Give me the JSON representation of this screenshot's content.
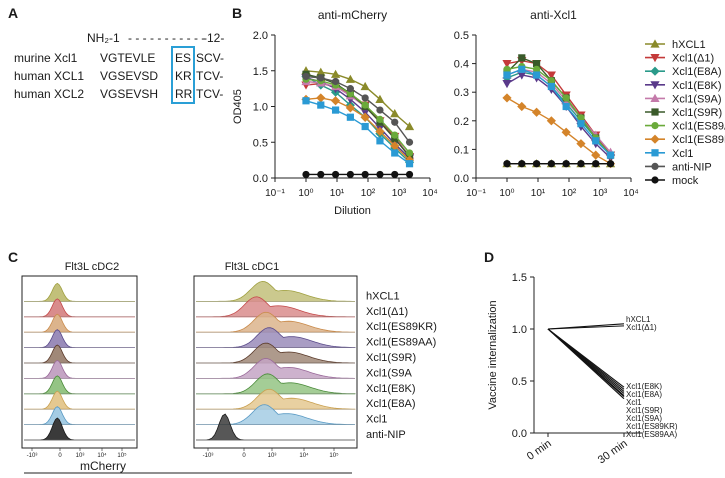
{
  "panels": {
    "A": {
      "letter": "A",
      "header_left": "NH₂-1",
      "header_dashes": "- - - - - - - - - - -",
      "header_right": "-12-",
      "rows": [
        {
          "label": "murine Xcl1",
          "pre": "VGTEVLE",
          "box": "ES",
          "post": "SCV-"
        },
        {
          "label": "human XCL1",
          "pre": "VGSEVSD",
          "box": "KR",
          "post": "TCV-"
        },
        {
          "label": "human XCL2",
          "pre": "VGSEVSH",
          "box": "RR",
          "post": "TCV-"
        }
      ],
      "box_color": "#2a9fd6"
    },
    "B": {
      "letter": "B"
    },
    "C": {
      "letter": "C",
      "title_left": "Flt3L cDC2",
      "title_right": "Flt3L cDC1",
      "xaxis_label": "mCherry",
      "tick_labels": [
        "-10³",
        "0",
        "10³",
        "10⁴",
        "10⁵"
      ],
      "tracks": [
        {
          "label": "hXCL1",
          "color": "#a0a040",
          "fill": "#c2c07a"
        },
        {
          "label": "Xcl1(Δ1)",
          "color": "#c44a4a",
          "fill": "#d98c8c"
        },
        {
          "label": "Xcl1(ES89KR)",
          "color": "#c98a4a",
          "fill": "#dcb48c"
        },
        {
          "label": "Xcl1(ES89AA)",
          "color": "#5a4a8a",
          "fill": "#9a8cba"
        },
        {
          "label": "Xcl1(S9R)",
          "color": "#5a3a2a",
          "fill": "#a08878"
        },
        {
          "label": "Xcl1(S9A",
          "color": "#9a6a9a",
          "fill": "#c4a4c4"
        },
        {
          "label": "Xcl1(E8K)",
          "color": "#4a8a3a",
          "fill": "#94c484"
        },
        {
          "label": "Xcl1(E8A)",
          "color": "#c9a050",
          "fill": "#e4c890"
        },
        {
          "label": "Xcl1",
          "color": "#5a9ac4",
          "fill": "#a4cce4"
        },
        {
          "label": "anti-NIP",
          "color": "#1a1a1a",
          "fill": "#3a3a3a"
        }
      ],
      "cdc2_peak_fraction": [
        0.3,
        0.3,
        0.3,
        0.3,
        0.3,
        0.3,
        0.3,
        0.3,
        0.3,
        0.3
      ],
      "cdc1_peak_fraction": [
        0.42,
        0.38,
        0.44,
        0.46,
        0.44,
        0.44,
        0.45,
        0.46,
        0.43,
        0.18
      ]
    },
    "D": {
      "letter": "D"
    }
  },
  "chart_data": [
    {
      "id": "B-left",
      "type": "line",
      "title": "anti-mCherry",
      "xlabel": "Dilution",
      "ylabel": "OD405",
      "xscale": "log",
      "xlim": [
        0.1,
        10000
      ],
      "ylim": [
        0,
        2.0
      ],
      "yticks": [
        0.0,
        0.5,
        1.0,
        1.5,
        2.0
      ],
      "ytick_labels": [
        "0.0",
        "0.5",
        "1.0",
        "1.5",
        "2.0"
      ],
      "xticks": [
        0.1,
        1,
        10,
        100,
        1000,
        10000
      ],
      "xtick_labels": [
        "10⁻¹",
        "10⁰",
        "10¹",
        "10²",
        "10³",
        "10⁴"
      ],
      "x": [
        1,
        3,
        9,
        27,
        81,
        243,
        729,
        2187
      ],
      "series": [
        {
          "name": "hXCL1",
          "values": [
            1.5,
            1.48,
            1.45,
            1.38,
            1.28,
            1.1,
            0.9,
            0.72
          ]
        },
        {
          "name": "Xcl1(Δ1)",
          "values": [
            1.3,
            1.32,
            1.28,
            1.18,
            1.02,
            0.8,
            0.58,
            0.3
          ]
        },
        {
          "name": "Xcl1(E8A)",
          "values": [
            1.42,
            1.3,
            1.2,
            1.02,
            0.85,
            0.62,
            0.42,
            0.22
          ]
        },
        {
          "name": "Xcl1(E8K)",
          "values": [
            1.4,
            1.35,
            1.25,
            1.1,
            0.92,
            0.7,
            0.48,
            0.28
          ]
        },
        {
          "name": "Xcl1(S9A)",
          "values": [
            1.35,
            1.33,
            1.28,
            1.15,
            1.0,
            0.78,
            0.55,
            0.32
          ]
        },
        {
          "name": "Xcl1(S9R)",
          "values": [
            1.45,
            1.4,
            1.32,
            1.18,
            1.0,
            0.78,
            0.55,
            0.3
          ]
        },
        {
          "name": "Xcl1(ES89AA)",
          "values": [
            1.38,
            1.36,
            1.3,
            1.18,
            1.02,
            0.82,
            0.6,
            0.35
          ]
        },
        {
          "name": "Xcl1(ES89KR)",
          "values": [
            1.1,
            1.12,
            1.08,
            0.98,
            0.85,
            0.65,
            0.45,
            0.25
          ]
        },
        {
          "name": "Xcl1",
          "values": [
            1.08,
            1.02,
            0.95,
            0.85,
            0.72,
            0.52,
            0.35,
            0.2
          ]
        },
        {
          "name": "anti-NIP",
          "values": [
            1.42,
            1.4,
            1.35,
            1.25,
            1.12,
            0.95,
            0.78,
            0.5
          ]
        },
        {
          "name": "mock",
          "values": [
            0.05,
            0.05,
            0.05,
            0.05,
            0.05,
            0.05,
            0.05,
            0.05
          ]
        }
      ]
    },
    {
      "id": "B-right",
      "type": "line",
      "title": "anti-Xcl1",
      "xlabel": "",
      "ylabel": "",
      "xscale": "log",
      "xlim": [
        0.1,
        10000
      ],
      "ylim": [
        0,
        0.5
      ],
      "yticks": [
        0.0,
        0.1,
        0.2,
        0.3,
        0.4,
        0.5
      ],
      "ytick_labels": [
        "0.0",
        "0.1",
        "0.2",
        "0.3",
        "0.4",
        "0.5"
      ],
      "xticks": [
        0.1,
        1,
        10,
        100,
        1000,
        10000
      ],
      "xtick_labels": [
        "10⁻¹",
        "10⁰",
        "10¹",
        "10²",
        "10³",
        "10⁴"
      ],
      "x": [
        1,
        3,
        9,
        27,
        81,
        243,
        729,
        2187
      ],
      "series": [
        {
          "name": "hXCL1",
          "values": [
            0.05,
            0.05,
            0.05,
            0.05,
            0.05,
            0.05,
            0.05,
            0.05
          ]
        },
        {
          "name": "Xcl1(Δ1)",
          "values": [
            0.4,
            0.41,
            0.4,
            0.36,
            0.29,
            0.22,
            0.15,
            0.08
          ]
        },
        {
          "name": "Xcl1(E8A)",
          "values": [
            0.35,
            0.37,
            0.36,
            0.32,
            0.26,
            0.2,
            0.14,
            0.08
          ]
        },
        {
          "name": "Xcl1(E8K)",
          "values": [
            0.33,
            0.36,
            0.35,
            0.31,
            0.25,
            0.18,
            0.12,
            0.07
          ]
        },
        {
          "name": "Xcl1(S9A)",
          "values": [
            0.36,
            0.38,
            0.37,
            0.33,
            0.27,
            0.21,
            0.15,
            0.09
          ]
        },
        {
          "name": "Xcl1(S9R)",
          "values": [
            0.37,
            0.42,
            0.4,
            0.34,
            0.28,
            0.21,
            0.14,
            0.08
          ]
        },
        {
          "name": "Xcl1(ES89AA)",
          "values": [
            0.38,
            0.39,
            0.38,
            0.34,
            0.28,
            0.21,
            0.14,
            0.08
          ]
        },
        {
          "name": "Xcl1(ES89KR)",
          "values": [
            0.28,
            0.25,
            0.23,
            0.2,
            0.16,
            0.12,
            0.08,
            0.05
          ]
        },
        {
          "name": "Xcl1",
          "values": [
            0.36,
            0.38,
            0.36,
            0.32,
            0.25,
            0.19,
            0.13,
            0.08
          ]
        },
        {
          "name": "anti-NIP",
          "values": [
            0.05,
            0.05,
            0.05,
            0.05,
            0.05,
            0.05,
            0.05,
            0.05
          ]
        },
        {
          "name": "mock",
          "values": [
            0.05,
            0.05,
            0.05,
            0.05,
            0.05,
            0.05,
            0.05,
            0.05
          ]
        }
      ],
      "legend": [
        {
          "name": "hXCL1",
          "color": "#8a8a2a",
          "marker": "triangle"
        },
        {
          "name": "Xcl1(Δ1)",
          "color": "#c43a3a",
          "marker": "tri-down"
        },
        {
          "name": "Xcl1(E8A)",
          "color": "#2a9a8a",
          "marker": "diamond"
        },
        {
          "name": "Xcl1(E8K)",
          "color": "#5a3a8a",
          "marker": "tri-down"
        },
        {
          "name": "Xcl1(S9A)",
          "color": "#c47aaa",
          "marker": "triangle"
        },
        {
          "name": "Xcl1(S9R)",
          "color": "#3a5a2a",
          "marker": "square"
        },
        {
          "name": "Xcl1(ES89AA)",
          "color": "#6aaa3a",
          "marker": "circle"
        },
        {
          "name": "Xcl1(ES89KR)",
          "color": "#d4842a",
          "marker": "diamond"
        },
        {
          "name": "Xcl1",
          "color": "#2a9ad4",
          "marker": "square"
        },
        {
          "name": "anti-NIP",
          "color": "#555555",
          "marker": "circle"
        },
        {
          "name": "mock",
          "color": "#111111",
          "marker": "circle"
        }
      ]
    },
    {
      "id": "D",
      "type": "line",
      "title": "",
      "xlabel": "",
      "ylabel": "Vaccine internalization",
      "categories": [
        "0 min",
        "30 min"
      ],
      "ylim": [
        0,
        1.5
      ],
      "yticks": [
        0.0,
        0.5,
        1.0,
        1.5
      ],
      "ytick_labels": [
        "0.0",
        "0.5",
        "1.0",
        "1.5"
      ],
      "series": [
        {
          "name": "hXCL1",
          "values": [
            1.0,
            1.05
          ]
        },
        {
          "name": "Xcl1(Δ1)",
          "values": [
            1.0,
            1.03
          ]
        },
        {
          "name": "Xcl1(E8K)",
          "values": [
            1.0,
            0.44
          ]
        },
        {
          "name": "Xcl1(E8A)",
          "values": [
            1.0,
            0.42
          ]
        },
        {
          "name": "Xcl1",
          "values": [
            1.0,
            0.4
          ]
        },
        {
          "name": "Xcl1(S9R)",
          "values": [
            1.0,
            0.38
          ]
        },
        {
          "name": "Xcl1(S9A)",
          "values": [
            1.0,
            0.36
          ]
        },
        {
          "name": "Xcl1(ES89KR)",
          "values": [
            1.0,
            0.35
          ]
        },
        {
          "name": "Xcl1(ES89AA)",
          "values": [
            1.0,
            0.33
          ]
        }
      ]
    }
  ]
}
